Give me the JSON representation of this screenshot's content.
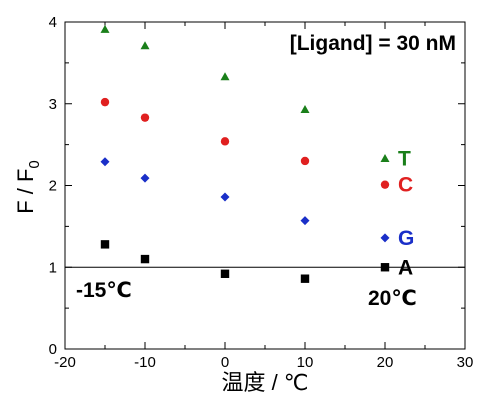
{
  "chart_data": {
    "type": "scatter",
    "xlabel": "温度 / ℃",
    "ylabel_main": "F / F",
    "ylabel_sub": "0",
    "xlim": [
      -20,
      30
    ],
    "ylim": [
      0,
      4
    ],
    "x_ticks": [
      -20,
      -10,
      0,
      10,
      20,
      30
    ],
    "y_ticks": [
      0,
      1,
      2,
      3,
      4
    ],
    "grid": false,
    "reference_line_y": 1,
    "series": [
      {
        "name": "T",
        "color": "#1a7f1a",
        "marker": "triangle",
        "x": [
          -15,
          -10,
          0,
          10,
          20
        ],
        "y": [
          3.91,
          3.71,
          3.33,
          2.93,
          2.33
        ]
      },
      {
        "name": "C",
        "color": "#e02020",
        "marker": "circle",
        "x": [
          -15,
          -10,
          0,
          10,
          20
        ],
        "y": [
          3.02,
          2.83,
          2.54,
          2.3,
          2.01
        ]
      },
      {
        "name": "G",
        "color": "#1a2fc8",
        "marker": "diamond",
        "x": [
          -15,
          -10,
          0,
          10,
          20
        ],
        "y": [
          2.29,
          2.09,
          1.86,
          1.57,
          1.36
        ]
      },
      {
        "name": "A",
        "color": "#000000",
        "marker": "square",
        "x": [
          -15,
          -10,
          0,
          10,
          20
        ],
        "y": [
          1.28,
          1.1,
          0.92,
          0.86,
          1.0
        ]
      }
    ],
    "annotations": {
      "ligand": "[Ligand] = 30 nM",
      "left_temp": "-15℃",
      "right_temp": "20℃"
    }
  }
}
